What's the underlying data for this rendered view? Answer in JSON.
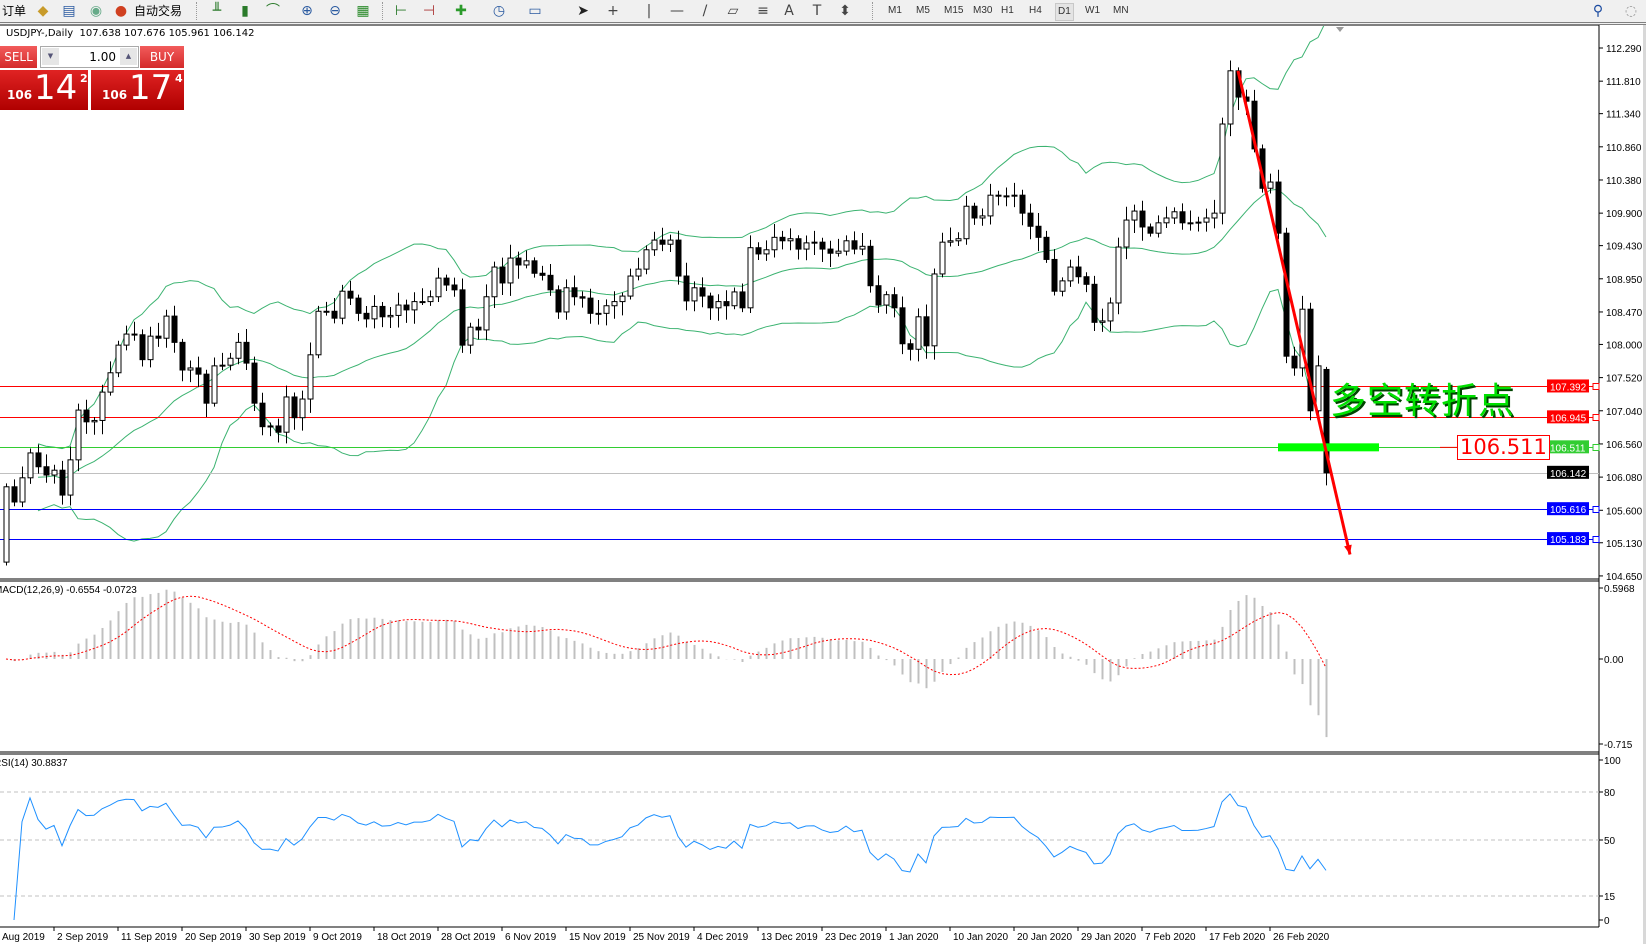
{
  "toolbar": {
    "order_label": "订单",
    "autotrade_label": "自动交易",
    "timeframes": [
      "M1",
      "M5",
      "M15",
      "M30",
      "H1",
      "H4",
      "D1",
      "W1",
      "MN"
    ],
    "active_timeframe": "D1"
  },
  "chart_header": {
    "symbol": "USDJPY-,Daily",
    "ohlc": "107.638 107.676 105.961 106.142"
  },
  "trade_panel": {
    "sell_label": "SELL",
    "buy_label": "BUY",
    "lot": "1.00",
    "sell_price": {
      "prefix": "106",
      "big": "14",
      "sup": "2"
    },
    "buy_price": {
      "prefix": "106",
      "big": "17",
      "sup": "4"
    }
  },
  "annotation": {
    "text": "多空转折点",
    "level_label": "106.511"
  },
  "chart_data": {
    "type": "candlestick",
    "symbol": "USDJPY-",
    "timeframe": "Daily",
    "first_open": 104.85,
    "last_bar": {
      "open": 107.638,
      "high": 107.676,
      "low": 105.961,
      "close": 106.142
    },
    "closes": [
      105.94,
      105.72,
      106.07,
      106.43,
      106.23,
      106.11,
      106.18,
      105.82,
      106.33,
      107.05,
      106.88,
      106.9,
      107.31,
      107.59,
      107.99,
      108.15,
      108.14,
      107.78,
      108.12,
      108.09,
      108.41,
      108.03,
      107.63,
      107.66,
      107.57,
      107.15,
      107.69,
      107.7,
      107.8,
      108.03,
      107.73,
      107.15,
      106.81,
      106.82,
      106.73,
      107.24,
      106.94,
      107.21,
      107.85,
      108.48,
      108.48,
      108.38,
      108.77,
      108.67,
      108.45,
      108.37,
      108.55,
      108.4,
      108.42,
      108.57,
      108.5,
      108.62,
      108.62,
      108.69,
      108.96,
      108.86,
      108.79,
      107.99,
      108.25,
      108.21,
      108.69,
      109.12,
      108.89,
      109.25,
      109.15,
      109.21,
      109.03,
      109.0,
      108.79,
      108.47,
      108.82,
      108.69,
      108.67,
      108.45,
      108.45,
      108.56,
      108.62,
      108.7,
      108.99,
      109.09,
      109.37,
      109.51,
      109.45,
      109.51,
      108.99,
      108.63,
      108.82,
      108.7,
      108.53,
      108.62,
      108.56,
      108.76,
      108.53,
      109.4,
      109.31,
      109.37,
      109.55,
      109.5,
      109.53,
      109.38,
      109.47,
      109.48,
      109.38,
      109.32,
      109.35,
      109.5,
      109.38,
      109.42,
      108.85,
      108.57,
      108.72,
      108.53,
      108.01,
      107.93,
      108.4,
      107.98,
      109.02,
      109.48,
      109.5,
      109.53,
      110.0,
      109.83,
      109.86,
      110.16,
      110.15,
      110.15,
      110.16,
      109.9,
      109.71,
      109.55,
      109.23,
      108.77,
      108.92,
      109.12,
      108.98,
      108.87,
      108.32,
      108.34,
      108.6,
      109.41,
      109.8,
      109.93,
      109.7,
      109.61,
      109.76,
      109.83,
      109.92,
      109.76,
      109.76,
      109.77,
      109.83,
      109.9,
      111.19,
      111.96,
      111.58,
      111.52,
      110.83,
      110.26,
      110.35,
      109.61,
      107.83,
      107.66,
      108.51,
      107.04,
      107.69,
      106.14
    ],
    "price_ticks": [
      "112.290",
      "111.810",
      "111.340",
      "110.860",
      "110.380",
      "109.900",
      "109.430",
      "108.950",
      "108.470",
      "108.000",
      "107.520",
      "107.040",
      "106.560",
      "106.080",
      "105.600",
      "105.130",
      "104.650"
    ],
    "price_range": [
      104.65,
      112.29
    ],
    "horizontal_lines": [
      {
        "price": "107.392",
        "color": "#ff0000"
      },
      {
        "price": "106.945",
        "color": "#ff0000"
      },
      {
        "price": "106.511",
        "color": "#32cd32"
      },
      {
        "price": "106.142",
        "color": "#c0c0c0",
        "label_bg": "#000000"
      },
      {
        "price": "105.616",
        "color": "#0000ff"
      },
      {
        "price": "105.183",
        "color": "#0000ff"
      }
    ],
    "trendline": {
      "from": {
        "bar": 154,
        "price": 111.96
      },
      "to": {
        "bar": 168,
        "price": 104.96
      },
      "color": "#ff0000"
    },
    "bollinger": {
      "period": 20,
      "deviation": 2,
      "color": "#3cb371"
    },
    "macd": {
      "label": "MACD(12,26,9) -0.6554 -0.0723",
      "fast": 12,
      "slow": 26,
      "signal": 9,
      "ticks": [
        "0.5968",
        "0.00",
        "-0.715"
      ],
      "range": [
        -0.715,
        0.5968
      ],
      "hist_color": "#c0c0c0",
      "signal_color": "#ff0000"
    },
    "rsi": {
      "label": "RSI(14) 30.8837",
      "period": 14,
      "ticks": [
        "100",
        "80",
        "50",
        "15",
        "0"
      ],
      "levels": [
        80,
        50,
        15
      ],
      "color": "#1e90ff"
    },
    "date_ticks": [
      {
        "label": "Aug 2019",
        "bar": -1
      },
      {
        "label": "2 Sep 2019",
        "bar": 6
      },
      {
        "label": "11 Sep 2019",
        "bar": 14
      },
      {
        "label": "20 Sep 2019",
        "bar": 22
      },
      {
        "label": "30 Sep 2019",
        "bar": 30
      },
      {
        "label": "9 Oct 2019",
        "bar": 38
      },
      {
        "label": "18 Oct 2019",
        "bar": 46
      },
      {
        "label": "28 Oct 2019",
        "bar": 54
      },
      {
        "label": "6 Nov 2019",
        "bar": 62
      },
      {
        "label": "15 Nov 2019",
        "bar": 70
      },
      {
        "label": "25 Nov 2019",
        "bar": 78
      },
      {
        "label": "4 Dec 2019",
        "bar": 86
      },
      {
        "label": "13 Dec 2019",
        "bar": 94
      },
      {
        "label": "23 Dec 2019",
        "bar": 102
      },
      {
        "label": "1 Jan 2020",
        "bar": 110
      },
      {
        "label": "10 Jan 2020",
        "bar": 118
      },
      {
        "label": "20 Jan 2020",
        "bar": 126
      },
      {
        "label": "29 Jan 2020",
        "bar": 134
      },
      {
        "label": "7 Feb 2020",
        "bar": 142
      },
      {
        "label": "17 Feb 2020",
        "bar": 150
      },
      {
        "label": "26 Feb 2020",
        "bar": 158
      }
    ]
  }
}
